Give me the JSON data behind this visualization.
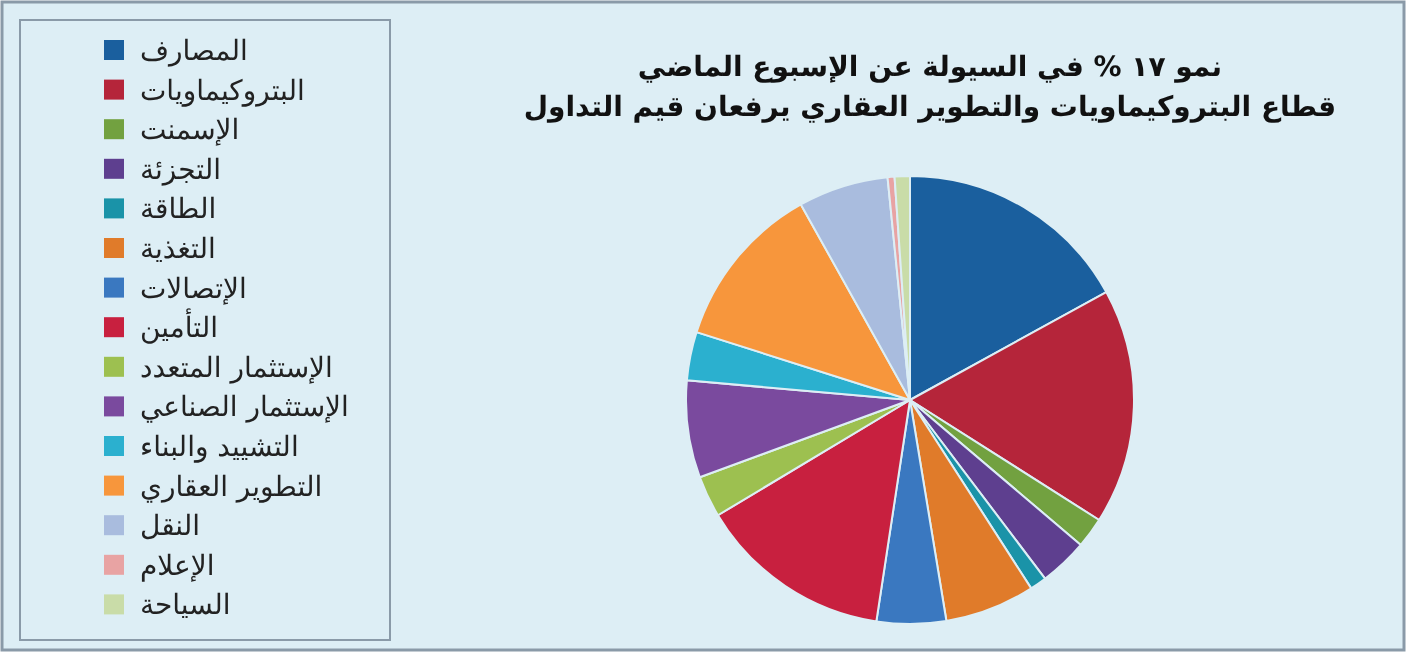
{
  "chart_data": {
    "type": "pie",
    "title": "نمو ١٧ % في السيولة عن الإسبوع الماضي",
    "subtitle": "قطاع البتروكيماويات والتطوير العقاري يرفعان قيم التداول",
    "categories": [
      "المصارف",
      "البتروكيماويات",
      "الإسمنت",
      "التجزئة",
      "الطاقة",
      "التغذية",
      "الإتصالات",
      "التأمين",
      "الإستثمار المتعدد",
      "الإستثمار الصناعي",
      "التشييد والبناء",
      "التطوير العقاري",
      "النقل",
      "الإعلام",
      "السياحة"
    ],
    "values": [
      17,
      17,
      2.2,
      3.5,
      1.2,
      6.5,
      5,
      14,
      3,
      7,
      3.5,
      12,
      6.5,
      0.5,
      1.1
    ],
    "colors": [
      "#1a5f9e",
      "#b5253a",
      "#72a140",
      "#5e3f8f",
      "#1a93a8",
      "#e07b2a",
      "#3a78c0",
      "#c8203f",
      "#9dc050",
      "#7a4a9e",
      "#2bb0cf",
      "#f7963c",
      "#a9bcde",
      "#e8a3a3",
      "#c9dca8"
    ],
    "legend": "left"
  }
}
